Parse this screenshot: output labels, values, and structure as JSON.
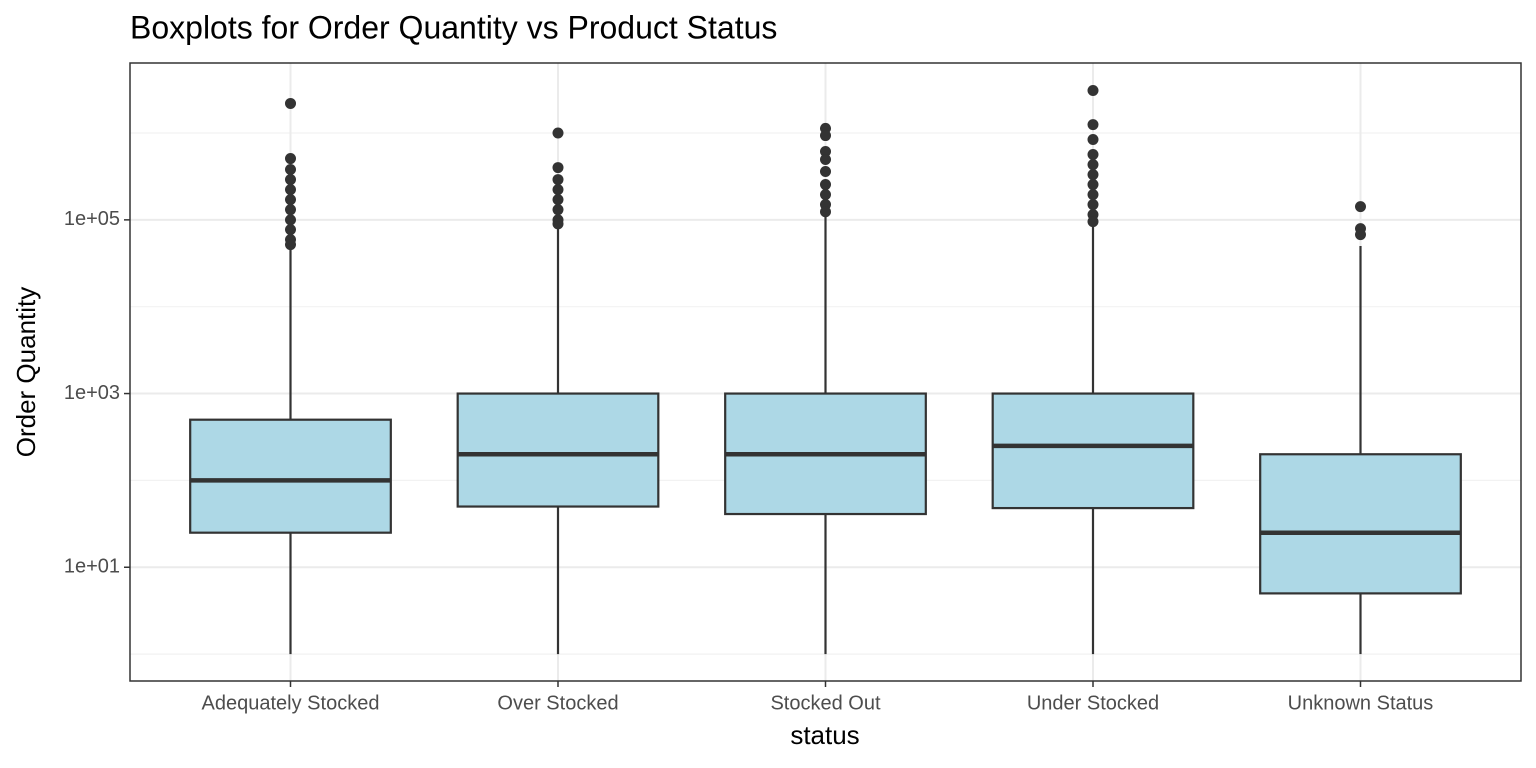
{
  "chart_data": {
    "type": "boxplot",
    "title": "Boxplots for Order Quantity  vs Product Status",
    "x_label": "status",
    "y_label": "Order Quantity",
    "log_y": true,
    "grid": true,
    "box_color": "#add8e6",
    "line_color": "#333333",
    "ylim": [
      0.49,
      6400000
    ],
    "yticks": [
      {
        "value": 10,
        "label": "1e+01"
      },
      {
        "value": 1000,
        "label": "1e+03"
      },
      {
        "value": 100000,
        "label": "1e+05"
      }
    ],
    "y_minor_grid": [
      1,
      100,
      10000,
      1000000
    ],
    "categories": [
      "Adequately Stocked",
      "Over Stocked",
      "Stocked Out",
      "Under Stocked",
      "Unknown Status"
    ],
    "boxes": [
      {
        "low": 1,
        "q1": 25,
        "median": 100,
        "q3": 500,
        "high": 50000,
        "outliers": [
          2190000,
          508000,
          380000,
          291000,
          223000,
          171000,
          131000,
          100000,
          77200,
          59200,
          51900
        ]
      },
      {
        "low": 1,
        "q1": 50,
        "median": 200,
        "q3": 1000,
        "high": 85000,
        "outliers": [
          1000000,
          400000,
          291000,
          223000,
          171000,
          131000,
          100000,
          90000
        ]
      },
      {
        "low": 1,
        "q1": 41,
        "median": 200,
        "q3": 1000,
        "high": 110000,
        "outliers": [
          1130000,
          935000,
          612000,
          495000,
          360000,
          255000,
          195000,
          150000,
          124000
        ]
      },
      {
        "low": 1,
        "q1": 48,
        "median": 250,
        "q3": 1000,
        "high": 88000,
        "outliers": [
          3090000,
          1250000,
          842000,
          565000,
          433000,
          332000,
          255000,
          195000,
          150000,
          115000,
          95400
        ]
      },
      {
        "low": 1,
        "q1": 5,
        "median": 25,
        "q3": 200,
        "high": 50000,
        "outliers": [
          142000,
          79300,
          67600
        ]
      }
    ]
  }
}
